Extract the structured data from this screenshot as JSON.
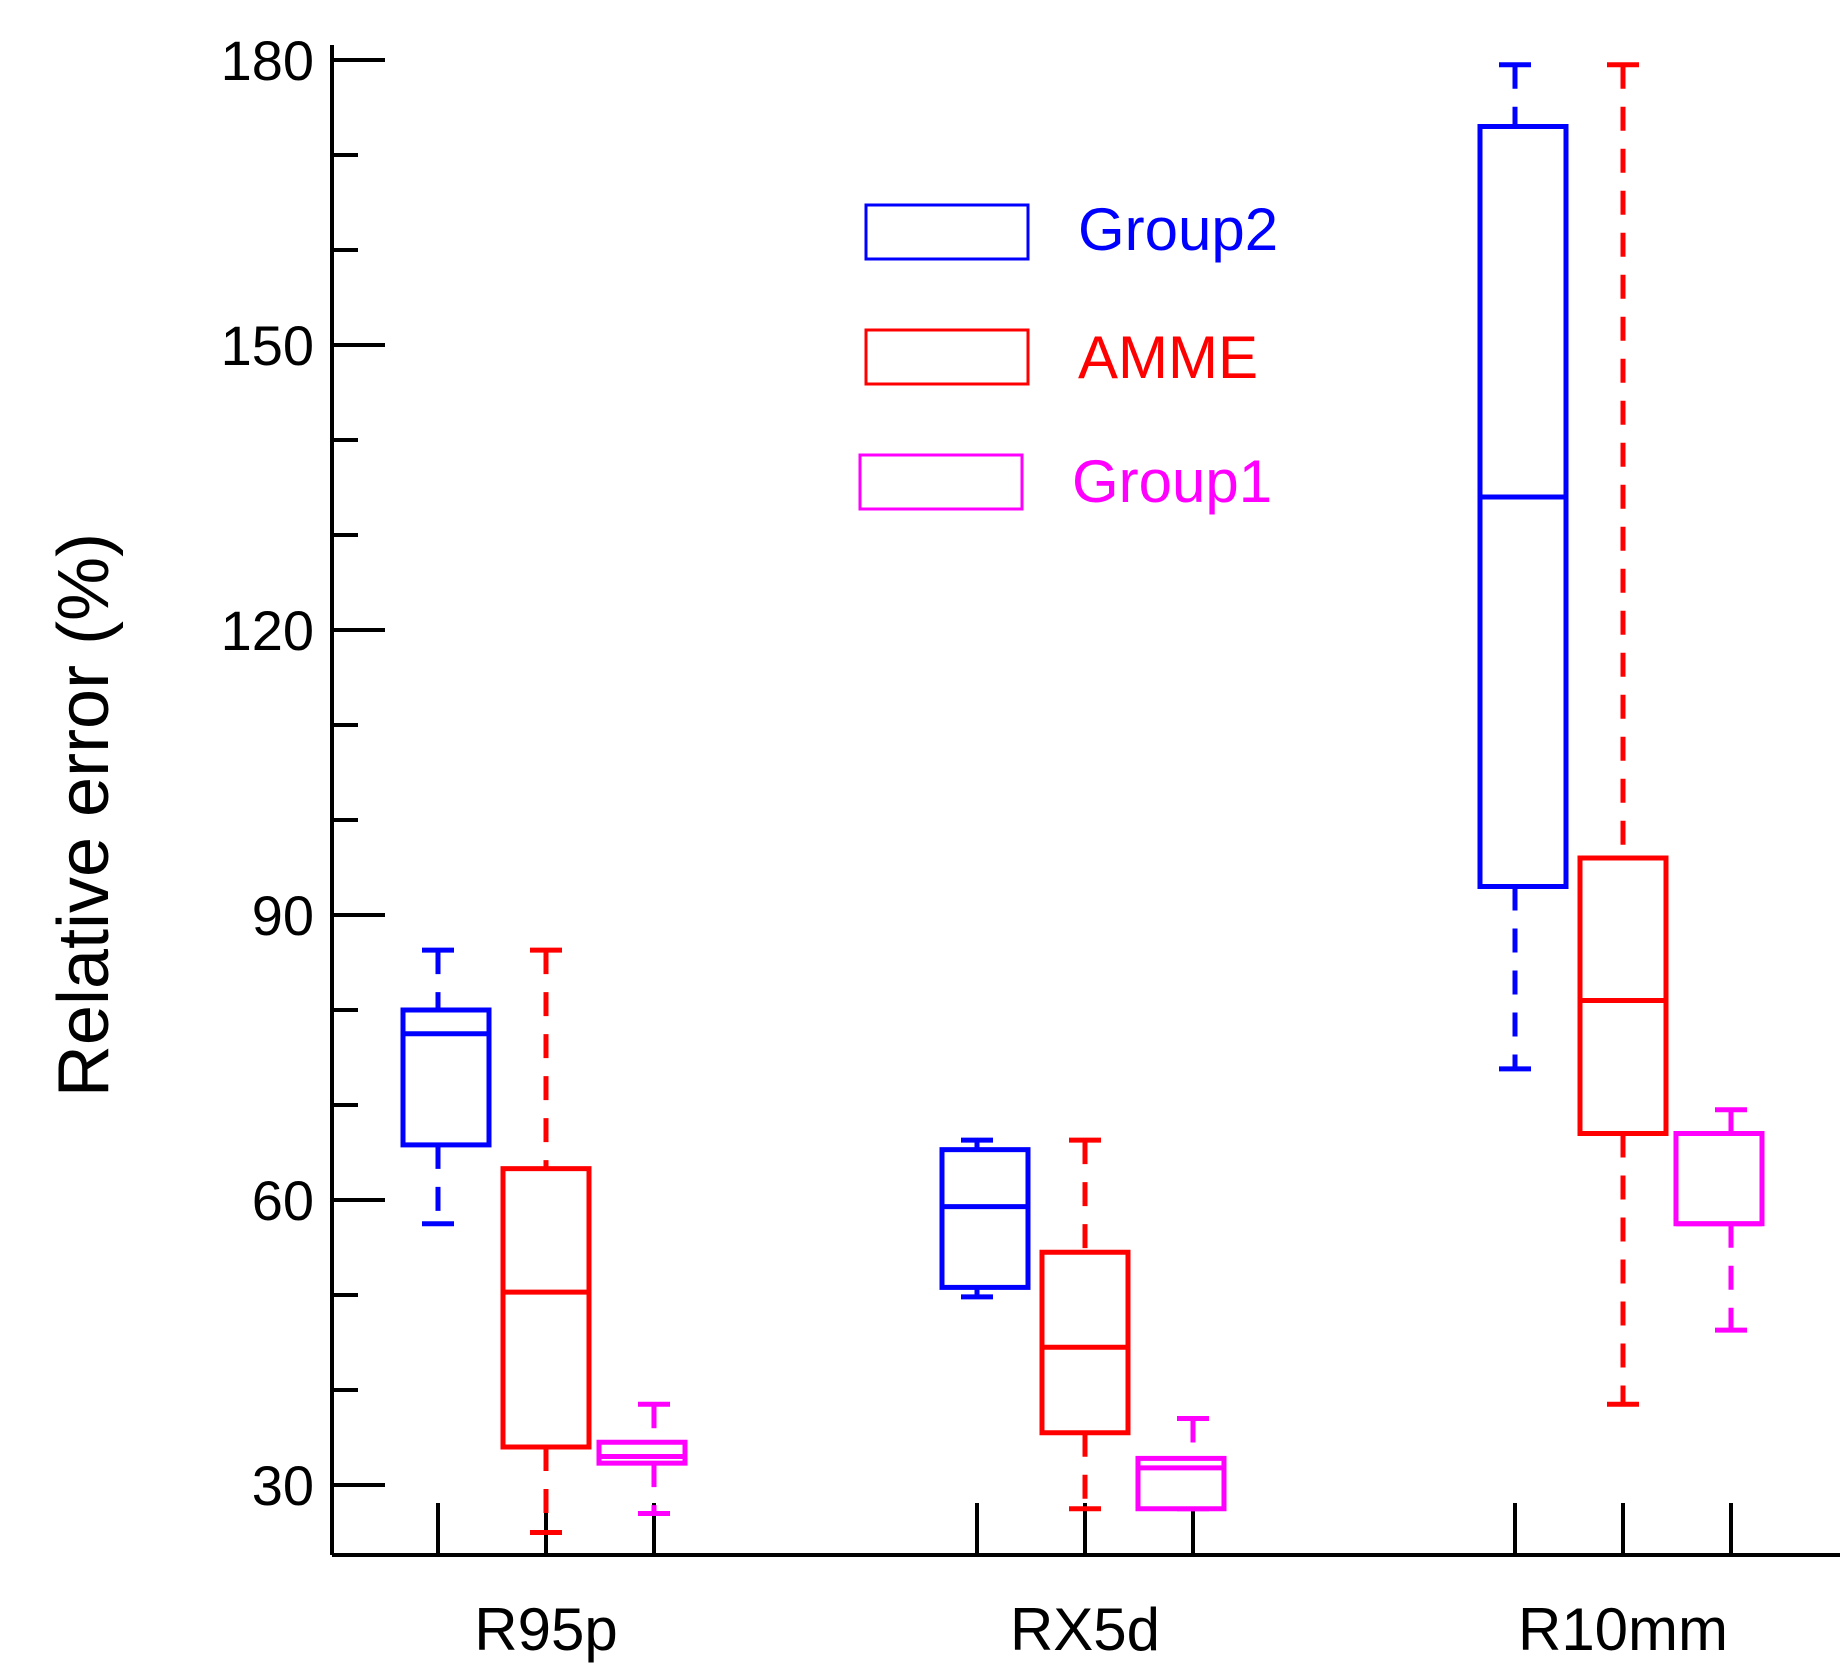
{
  "chart_data": {
    "type": "box",
    "title": "",
    "xlabel": "",
    "ylabel": "Relative error (%)",
    "ylim": [
      16,
      182
    ],
    "yticks_major": [
      30,
      60,
      90,
      120,
      150,
      180
    ],
    "yticks_minor": [
      40,
      50,
      70,
      80,
      100,
      110,
      130,
      140,
      160,
      170
    ],
    "categories": [
      "R95p",
      "RX5d",
      "R10mm"
    ],
    "series": [
      {
        "name": "Group2",
        "color": "#0000ff",
        "boxes": [
          {
            "min": 57.5,
            "q1": 65.8,
            "median": 77.5,
            "q3": 80,
            "max": 86.3
          },
          {
            "min": 49.8,
            "q1": 50.8,
            "median": 59.3,
            "q3": 65.3,
            "max": 66.3
          },
          {
            "min": 73.8,
            "q1": 93,
            "median": 134,
            "q3": 173,
            "max": 179.5
          }
        ]
      },
      {
        "name": "AMME",
        "color": "#ff0000",
        "boxes": [
          {
            "min": 25,
            "q1": 34,
            "median": 50.3,
            "q3": 63.3,
            "max": 86.3
          },
          {
            "min": 27.5,
            "q1": 35.5,
            "median": 44.5,
            "q3": 54.5,
            "max": 66.3
          },
          {
            "min": 38.5,
            "q1": 67,
            "median": 81,
            "q3": 96,
            "max": 179.5
          }
        ]
      },
      {
        "name": "Group1",
        "color": "#ff00ff",
        "boxes": [
          {
            "min": 27,
            "q1": 32.3,
            "median": 33,
            "q3": 34.5,
            "max": 38.5
          },
          {
            "min": 27.5,
            "q1": 27.5,
            "median": 31.8,
            "q3": 32.8,
            "max": 37
          },
          {
            "min": 46.3,
            "q1": 57.5,
            "median": 57.5,
            "q3": 67,
            "max": 69.5
          }
        ]
      }
    ],
    "legend": {
      "location": "top-center",
      "entries": [
        "Group2",
        "AMME",
        "Group1"
      ]
    }
  }
}
